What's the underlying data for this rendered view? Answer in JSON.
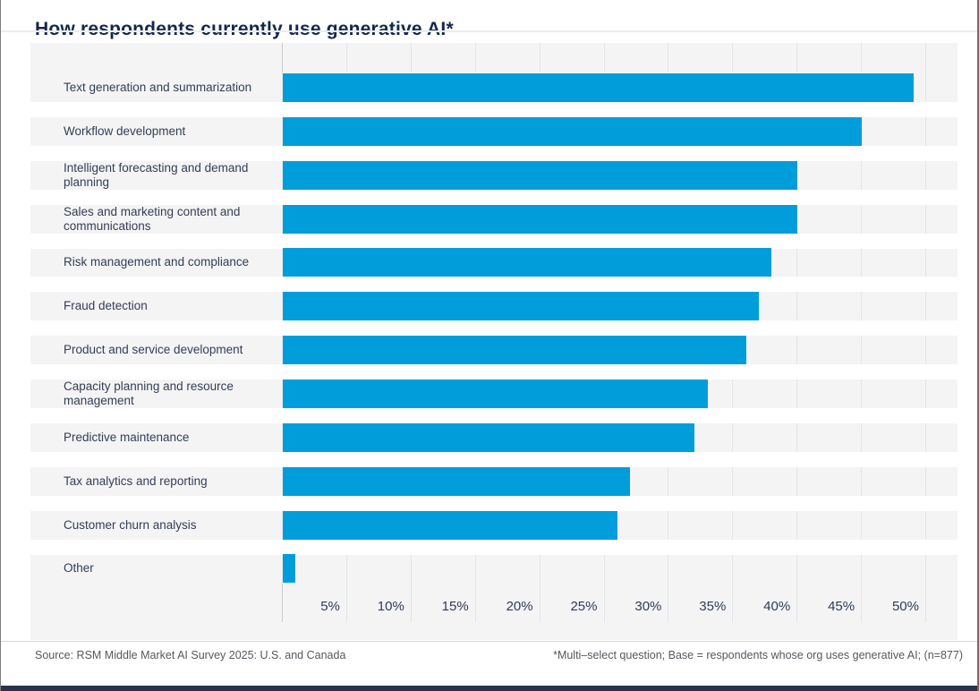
{
  "title": "How respondents currently use generative AI*",
  "chart_data": {
    "type": "bar",
    "orientation": "horizontal",
    "title": "How respondents currently use generative AI*",
    "categories": [
      "Text generation and summarization",
      "Workflow development",
      "Intelligent forecasting and demand planning",
      "Sales and marketing content and communications",
      "Risk management and compliance",
      "Fraud detection",
      "Product and service development",
      "Capacity planning and resource management",
      "Predictive maintenance",
      "Tax analytics and reporting",
      "Customer churn analysis",
      "Other"
    ],
    "values": [
      49,
      45,
      40,
      40,
      38,
      37,
      36,
      33,
      32,
      27,
      26,
      1
    ],
    "unit": "%",
    "x_ticks": [
      "5%",
      "10%",
      "15%",
      "20%",
      "25%",
      "30%",
      "35%",
      "40%",
      "45%",
      "50%"
    ],
    "x_tick_values": [
      5,
      10,
      15,
      20,
      25,
      30,
      35,
      40,
      45,
      50
    ],
    "xlim": [
      0,
      52.5
    ],
    "grid": true,
    "legend": "none",
    "bar_color": "#009ddb",
    "panel_background": "#f4f4f5",
    "accent_navy": "#14284b"
  },
  "footer": {
    "source": "Source: RSM Middle Market AI Survey 2025: U.S. and Canada",
    "note": "*Multi–select question; Base = respondents whose org uses generative AI; (n=877)"
  }
}
